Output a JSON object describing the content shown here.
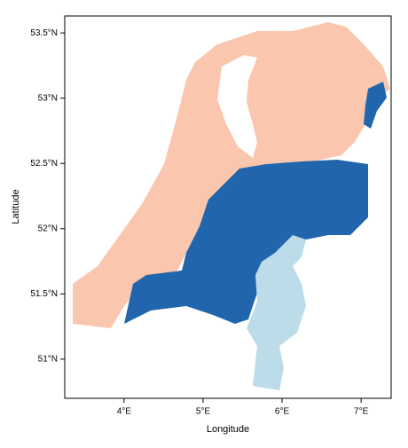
{
  "chart_data": {
    "type": "raster",
    "xlabel": "Longitude",
    "ylabel": "Latitude",
    "xlim": [
      3.25,
      7.38
    ],
    "ylim": [
      50.7,
      53.63
    ],
    "xticks": [
      {
        "value": 4,
        "label": "4°E"
      },
      {
        "value": 5,
        "label": "5°E"
      },
      {
        "value": 6,
        "label": "6°E"
      },
      {
        "value": 7,
        "label": "7°E"
      }
    ],
    "yticks": [
      {
        "value": 51,
        "label": "51°N"
      },
      {
        "value": 51.5,
        "label": "51.5°N"
      },
      {
        "value": 52,
        "label": "52°N"
      },
      {
        "value": 52.5,
        "label": "52.5°N"
      },
      {
        "value": 53,
        "label": "53°N"
      },
      {
        "value": 53.5,
        "label": "53.5°N"
      }
    ]
  }
}
